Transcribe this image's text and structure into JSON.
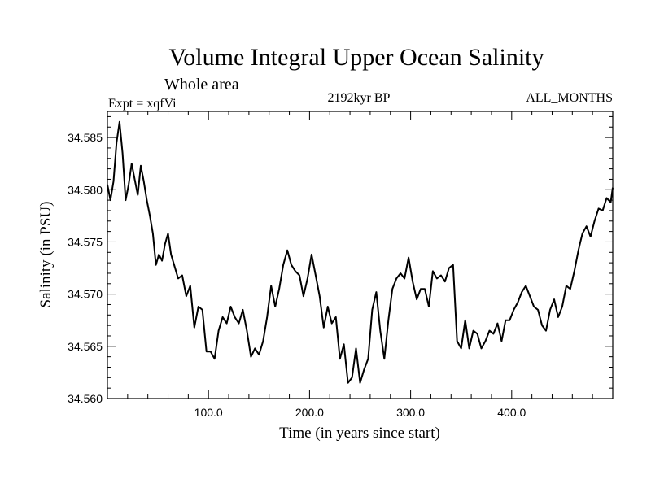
{
  "chart_data": {
    "type": "line",
    "title": "Volume Integral Upper Ocean Salinity",
    "subtitle": "Whole area",
    "experiment_label": "Expt = xqfVi",
    "period_label": "2192kyr BP",
    "months_label": "ALL_MONTHS",
    "xlabel": "Time (in years since start)",
    "ylabel": "Salinity (in PSU)",
    "xlim": [
      0,
      500
    ],
    "ylim": [
      34.56,
      34.5875
    ],
    "x_ticks": [
      100,
      200,
      300,
      400
    ],
    "x_tick_labels": [
      "100.0",
      "200.0",
      "300.0",
      "400.0"
    ],
    "y_ticks": [
      34.56,
      34.565,
      34.57,
      34.575,
      34.58,
      34.585
    ],
    "y_tick_labels": [
      "34.560",
      "34.565",
      "34.570",
      "34.575",
      "34.580",
      "34.585"
    ],
    "grid": false,
    "series": [
      {
        "name": "salinity",
        "x": [
          0,
          3,
          6,
          9,
          12,
          15,
          18,
          21,
          24,
          27,
          30,
          33,
          36,
          39,
          42,
          45,
          48,
          51,
          54,
          57,
          60,
          63,
          66,
          70,
          74,
          78,
          82,
          86,
          90,
          94,
          98,
          102,
          106,
          110,
          114,
          118,
          122,
          126,
          130,
          134,
          138,
          142,
          146,
          150,
          154,
          158,
          162,
          166,
          170,
          174,
          178,
          182,
          186,
          190,
          194,
          198,
          202,
          206,
          210,
          214,
          218,
          222,
          226,
          230,
          234,
          238,
          242,
          246,
          250,
          254,
          258,
          262,
          266,
          270,
          274,
          278,
          282,
          286,
          290,
          294,
          298,
          302,
          306,
          310,
          314,
          318,
          322,
          326,
          330,
          334,
          338,
          342,
          346,
          350,
          354,
          358,
          362,
          366,
          370,
          374,
          378,
          382,
          386,
          390,
          394,
          398,
          402,
          406,
          410,
          414,
          418,
          422,
          426,
          430,
          434,
          438,
          442,
          446,
          450,
          454,
          458,
          462,
          466,
          470,
          474,
          478,
          482,
          486,
          490,
          494,
          498,
          500
        ],
        "values": [
          34.5805,
          34.579,
          34.5808,
          34.5845,
          34.5865,
          34.5835,
          34.579,
          34.5805,
          34.5825,
          34.581,
          34.5795,
          34.5823,
          34.5808,
          34.579,
          34.5775,
          34.5758,
          34.5728,
          34.5738,
          34.5732,
          34.5748,
          34.5758,
          34.5738,
          34.5728,
          34.5715,
          34.5718,
          34.5698,
          34.5708,
          34.5668,
          34.5688,
          34.5685,
          34.5645,
          34.5645,
          34.5638,
          34.5665,
          34.5678,
          34.5672,
          34.5688,
          34.5678,
          34.5672,
          34.5685,
          34.5665,
          34.564,
          34.5648,
          34.5642,
          34.5655,
          34.5678,
          34.5708,
          34.5688,
          34.5705,
          34.5728,
          34.5742,
          34.5728,
          34.5722,
          34.5718,
          34.5698,
          34.5715,
          34.5738,
          34.5718,
          34.5698,
          34.5668,
          34.5688,
          34.5672,
          34.5678,
          34.5638,
          34.5652,
          34.5615,
          34.562,
          34.5648,
          34.5615,
          34.5628,
          34.5638,
          34.5685,
          34.5702,
          34.5665,
          34.5638,
          34.5675,
          34.5705,
          34.5715,
          34.572,
          34.5715,
          34.5735,
          34.5712,
          34.5695,
          34.5705,
          34.5705,
          34.5688,
          34.5722,
          34.5715,
          34.5718,
          34.5712,
          34.5725,
          34.5728,
          34.5655,
          34.5648,
          34.5675,
          34.5648,
          34.5665,
          34.5662,
          34.5648,
          34.5655,
          34.5665,
          34.5662,
          34.5672,
          34.5655,
          34.5675,
          34.5675,
          34.5685,
          34.5692,
          34.5702,
          34.5708,
          34.5698,
          34.5688,
          34.5685,
          34.567,
          34.5665,
          34.5685,
          34.5695,
          34.5678,
          34.5688,
          34.5708,
          34.5705,
          34.5722,
          34.5742,
          34.5758,
          34.5765,
          34.5755,
          34.577,
          34.5782,
          34.578,
          34.5792,
          34.5788,
          34.5802
        ]
      }
    ]
  }
}
